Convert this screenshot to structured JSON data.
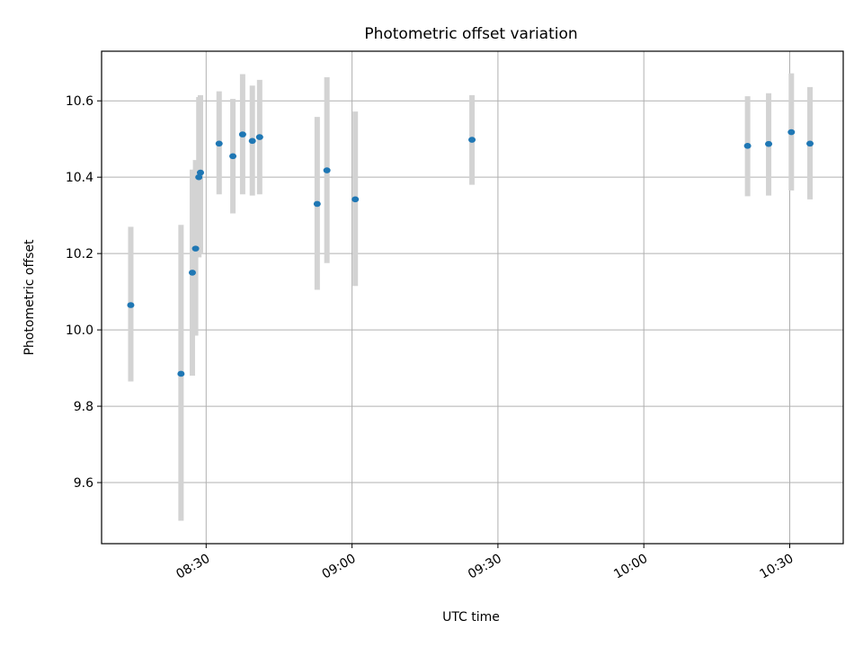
{
  "chart_data": {
    "type": "scatter",
    "title": "Photometric offset variation",
    "xlabel": "UTC time",
    "ylabel": "Photometric offset",
    "x_ticks": [
      "08:30",
      "09:00",
      "09:30",
      "10:00",
      "10:30"
    ],
    "y_ticks": [
      "9.6",
      "9.8",
      "10.0",
      "10.2",
      "10.4",
      "10.6"
    ],
    "xlim": [
      "08:08:30",
      "10:41:00"
    ],
    "ylim": [
      9.44,
      10.73
    ],
    "grid": true,
    "colors": {
      "point": "#1f77b4",
      "errorbar": "#d3d3d3"
    },
    "points": [
      {
        "x": "08:14:30",
        "y": 10.065,
        "err_low": 9.865,
        "err_high": 10.27
      },
      {
        "x": "08:24:50",
        "y": 9.885,
        "err_low": 9.5,
        "err_high": 10.275
      },
      {
        "x": "08:27:10",
        "y": 10.15,
        "err_low": 9.88,
        "err_high": 10.42
      },
      {
        "x": "08:27:50",
        "y": 10.213,
        "err_low": 9.985,
        "err_high": 10.445
      },
      {
        "x": "08:28:30",
        "y": 10.4,
        "err_low": 10.19,
        "err_high": 10.61
      },
      {
        "x": "08:28:50",
        "y": 10.412,
        "err_low": 10.2,
        "err_high": 10.615
      },
      {
        "x": "08:32:40",
        "y": 10.488,
        "err_low": 10.355,
        "err_high": 10.625
      },
      {
        "x": "08:35:30",
        "y": 10.455,
        "err_low": 10.305,
        "err_high": 10.605
      },
      {
        "x": "08:37:30",
        "y": 10.512,
        "err_low": 10.355,
        "err_high": 10.67
      },
      {
        "x": "08:39:30",
        "y": 10.495,
        "err_low": 10.352,
        "err_high": 10.64
      },
      {
        "x": "08:41:00",
        "y": 10.505,
        "err_low": 10.355,
        "err_high": 10.655
      },
      {
        "x": "08:52:50",
        "y": 10.33,
        "err_low": 10.105,
        "err_high": 10.558
      },
      {
        "x": "08:54:50",
        "y": 10.418,
        "err_low": 10.175,
        "err_high": 10.662
      },
      {
        "x": "09:00:40",
        "y": 10.342,
        "err_low": 10.115,
        "err_high": 10.572
      },
      {
        "x": "09:24:40",
        "y": 10.498,
        "err_low": 10.38,
        "err_high": 10.615
      },
      {
        "x": "10:21:20",
        "y": 10.482,
        "err_low": 10.35,
        "err_high": 10.612
      },
      {
        "x": "10:25:40",
        "y": 10.487,
        "err_low": 10.352,
        "err_high": 10.62
      },
      {
        "x": "10:30:20",
        "y": 10.518,
        "err_low": 10.365,
        "err_high": 10.672
      },
      {
        "x": "10:34:10",
        "y": 10.488,
        "err_low": 10.342,
        "err_high": 10.636
      }
    ]
  }
}
